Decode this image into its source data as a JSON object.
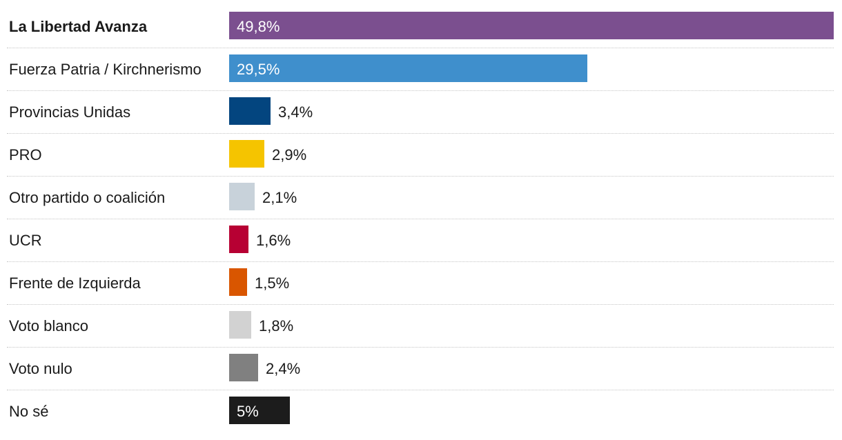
{
  "chart_data": {
    "type": "bar",
    "orientation": "horizontal",
    "categories": [
      "La Libertad Avanza",
      "Fuerza Patria / Kirchnerismo",
      "Provincias Unidas",
      "PRO",
      "Otro partido o coalición",
      "UCR",
      "Frente de Izquierda",
      "Voto blanco",
      "Voto nulo",
      "No sé"
    ],
    "values": [
      49.8,
      29.5,
      3.4,
      2.9,
      2.1,
      1.6,
      1.5,
      1.8,
      2.4,
      5
    ],
    "value_labels": [
      "49,8%",
      "29,5%",
      "3,4%",
      "2,9%",
      "2,1%",
      "1,6%",
      "1,5%",
      "1,8%",
      "2,4%",
      "5%"
    ],
    "colors": [
      "#7b4f8f",
      "#3f8fcc",
      "#03457f",
      "#f5c400",
      "#c8d2da",
      "#b70033",
      "#d95600",
      "#d2d2d2",
      "#808080",
      "#1c1c1c"
    ],
    "bold_categories": [
      "La Libertad Avanza"
    ],
    "label_inside": [
      true,
      true,
      false,
      false,
      false,
      false,
      false,
      false,
      false,
      true
    ],
    "xlim": [
      0,
      49.8
    ],
    "grid": false
  }
}
